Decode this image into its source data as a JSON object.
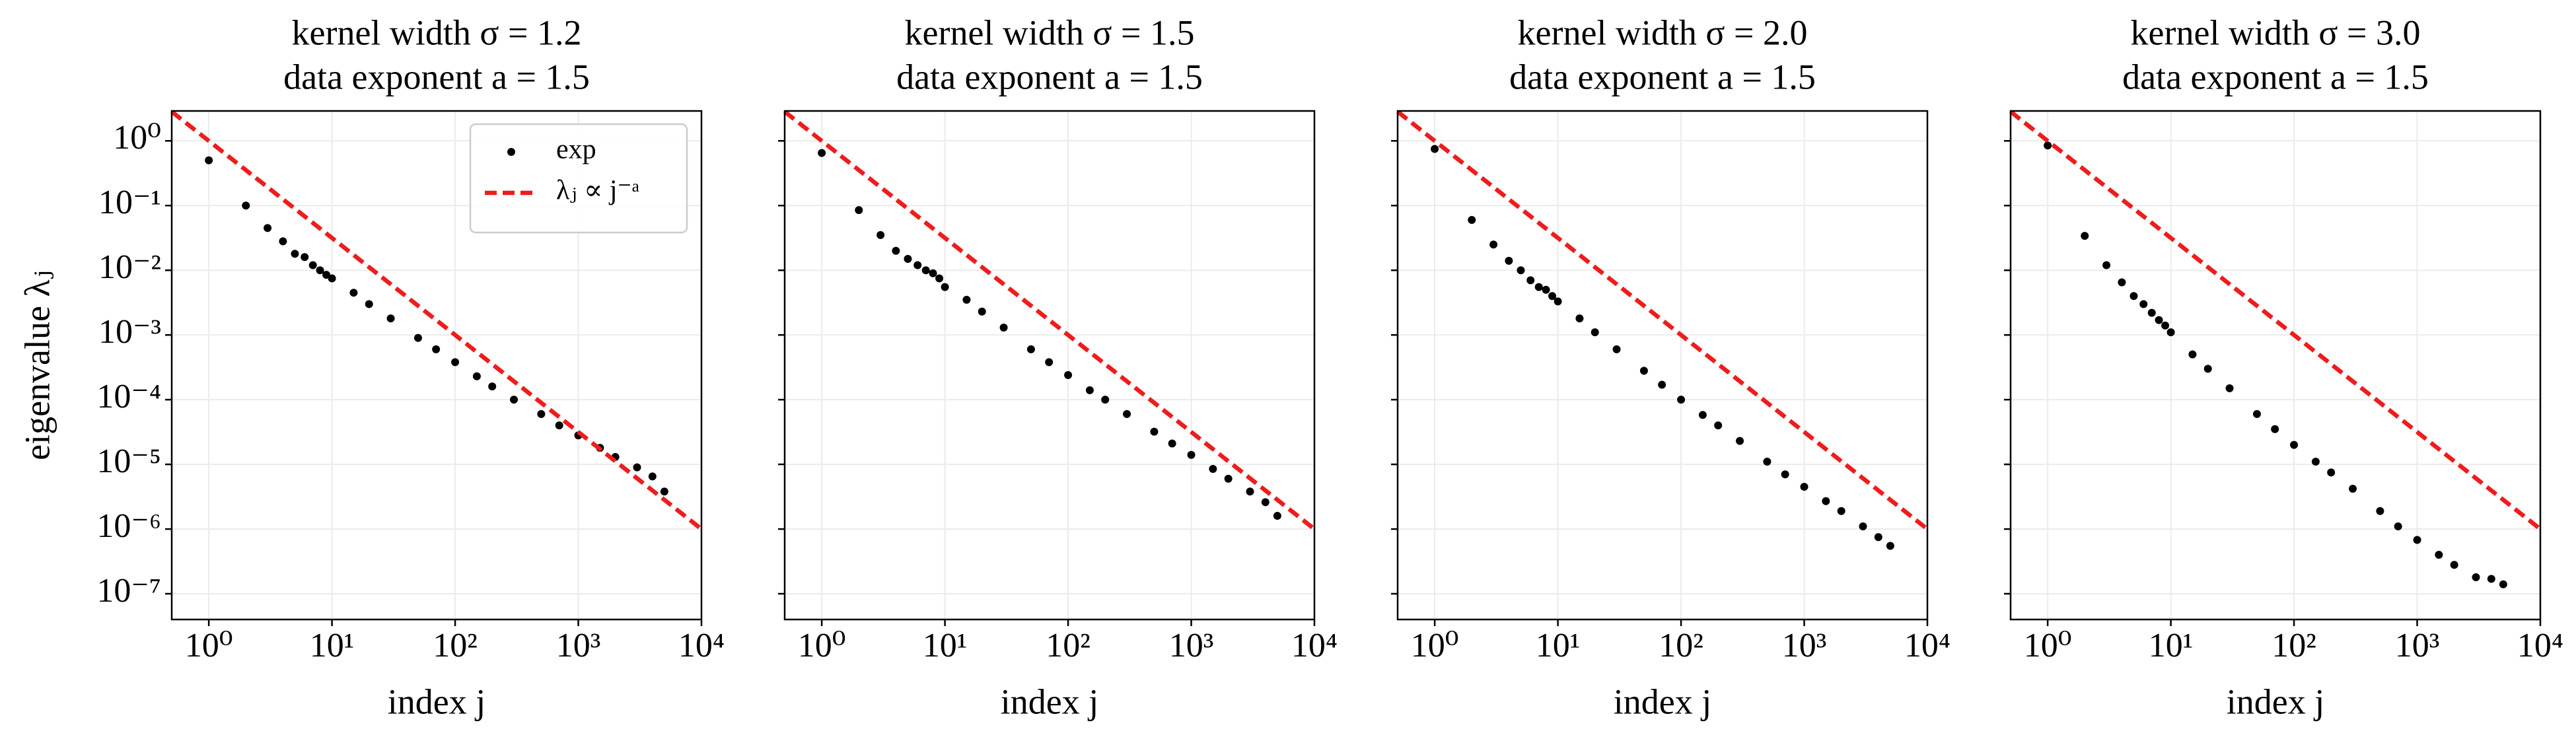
{
  "chart_data": [
    {
      "type": "scatter",
      "title": [
        "kernel width σ = 1.2",
        "data exponent a = 1.5"
      ],
      "xlabel": "index j",
      "ylabel": "eigenvalue λⱼ",
      "xscale": "log",
      "yscale": "log",
      "grid": true,
      "legend": "upper right",
      "xlim": [
        0.5,
        10000
      ],
      "ylim": [
        4e-08,
        2.9
      ],
      "xticks": [
        {
          "value": 1,
          "label": "10⁰"
        },
        {
          "value": 10,
          "label": "10¹"
        },
        {
          "value": 100,
          "label": "10²"
        },
        {
          "value": 1000,
          "label": "10³"
        },
        {
          "value": 10000,
          "label": "10⁴"
        }
      ],
      "yticks": [
        {
          "value": 1e-07,
          "label": "10⁻⁷"
        },
        {
          "value": 1e-06,
          "label": "10⁻⁶"
        },
        {
          "value": 1e-05,
          "label": "10⁻⁵"
        },
        {
          "value": 0.0001,
          "label": "10⁻⁴"
        },
        {
          "value": 0.001,
          "label": "10⁻³"
        },
        {
          "value": 0.01,
          "label": "10⁻²"
        },
        {
          "value": 0.1,
          "label": "10⁻¹"
        },
        {
          "value": 1,
          "label": "10⁰"
        }
      ],
      "series": [
        {
          "name": "exp",
          "color": "#000000",
          "marker": "o",
          "x": [
            1,
            2,
            3,
            4,
            5,
            6,
            7,
            8,
            9,
            10,
            15,
            20,
            30,
            50,
            70,
            100,
            150,
            200,
            300,
            500,
            700,
            1000,
            1500,
            2000,
            3000,
            4000,
            5000
          ],
          "values": [
            0.5,
            0.1,
            0.045,
            0.028,
            0.018,
            0.016,
            0.012,
            0.01,
            0.0085,
            0.0075,
            0.0045,
            0.003,
            0.0018,
            0.0009,
            0.0006,
            0.00038,
            0.00023,
            0.00016,
            0.0001,
            6e-05,
            4e-05,
            2.8e-05,
            1.8e-05,
            1.3e-05,
            9e-06,
            6.5e-06,
            3.8e-06
          ]
        },
        {
          "name": "λⱼ ∝ j⁻ᵃ",
          "color": "#ee1c1c",
          "linestyle": "--",
          "x": [
            0.5,
            10000
          ],
          "values": [
            2.828,
            1e-06
          ]
        }
      ]
    },
    {
      "type": "scatter",
      "title": [
        "kernel width σ = 1.5",
        "data exponent a = 1.5"
      ],
      "xlabel": "index j",
      "xscale": "log",
      "yscale": "log",
      "grid": true,
      "xlim": [
        0.5,
        10000
      ],
      "ylim": [
        4e-08,
        2.9
      ],
      "xticks": [
        {
          "value": 1,
          "label": "10⁰"
        },
        {
          "value": 10,
          "label": "10¹"
        },
        {
          "value": 100,
          "label": "10²"
        },
        {
          "value": 1000,
          "label": "10³"
        },
        {
          "value": 10000,
          "label": "10⁴"
        }
      ],
      "yticks": [
        1e-07,
        1e-06,
        1e-05,
        0.0001,
        0.001,
        0.01,
        0.1,
        1
      ],
      "series": [
        {
          "color": "#000000",
          "marker": "o",
          "x": [
            1,
            2,
            3,
            4,
            5,
            6,
            7,
            8,
            9,
            10,
            15,
            20,
            30,
            50,
            70,
            100,
            150,
            200,
            300,
            500,
            700,
            1000,
            1500,
            2000,
            3000,
            4000,
            5000
          ],
          "values": [
            0.65,
            0.085,
            0.035,
            0.02,
            0.015,
            0.012,
            0.01,
            0.009,
            0.0075,
            0.0055,
            0.0035,
            0.0023,
            0.0013,
            0.0006,
            0.00038,
            0.00024,
            0.00014,
            0.0001,
            6e-05,
            3.2e-05,
            2.1e-05,
            1.4e-05,
            8.5e-06,
            6e-06,
            3.8e-06,
            2.6e-06,
            1.6e-06
          ]
        },
        {
          "color": "#ee1c1c",
          "linestyle": "--",
          "x": [
            0.5,
            10000
          ],
          "values": [
            2.828,
            1e-06
          ]
        }
      ]
    },
    {
      "type": "scatter",
      "title": [
        "kernel width σ = 2.0",
        "data exponent a = 1.5"
      ],
      "xlabel": "index j",
      "xscale": "log",
      "yscale": "log",
      "grid": true,
      "xlim": [
        0.5,
        10000
      ],
      "ylim": [
        4e-08,
        2.9
      ],
      "xticks": [
        {
          "value": 1,
          "label": "10⁰"
        },
        {
          "value": 10,
          "label": "10¹"
        },
        {
          "value": 100,
          "label": "10²"
        },
        {
          "value": 1000,
          "label": "10³"
        },
        {
          "value": 10000,
          "label": "10⁴"
        }
      ],
      "yticks": [
        1e-07,
        1e-06,
        1e-05,
        0.0001,
        0.001,
        0.01,
        0.1,
        1
      ],
      "series": [
        {
          "color": "#000000",
          "marker": "o",
          "x": [
            1,
            2,
            3,
            4,
            5,
            6,
            7,
            8,
            9,
            10,
            15,
            20,
            30,
            50,
            70,
            100,
            150,
            200,
            300,
            500,
            700,
            1000,
            1500,
            2000,
            3000,
            4000,
            5000
          ],
          "values": [
            0.75,
            0.06,
            0.025,
            0.014,
            0.01,
            0.007,
            0.0055,
            0.005,
            0.004,
            0.0033,
            0.0018,
            0.0011,
            0.0006,
            0.00028,
            0.00017,
            0.0001,
            5.8e-05,
            4e-05,
            2.3e-05,
            1.1e-05,
            7e-06,
            4.5e-06,
            2.7e-06,
            1.9e-06,
            1.1e-06,
            7.5e-07,
            5.5e-07
          ]
        },
        {
          "color": "#ee1c1c",
          "linestyle": "--",
          "x": [
            0.5,
            10000
          ],
          "values": [
            2.828,
            1e-06
          ]
        }
      ]
    },
    {
      "type": "scatter",
      "title": [
        "kernel width σ = 3.0",
        "data exponent a = 1.5"
      ],
      "xlabel": "index j",
      "xscale": "log",
      "yscale": "log",
      "grid": true,
      "xlim": [
        0.5,
        10000
      ],
      "ylim": [
        4e-08,
        2.9
      ],
      "xticks": [
        {
          "value": 1,
          "label": "10⁰"
        },
        {
          "value": 10,
          "label": "10¹"
        },
        {
          "value": 100,
          "label": "10²"
        },
        {
          "value": 1000,
          "label": "10³"
        },
        {
          "value": 10000,
          "label": "10⁴"
        }
      ],
      "yticks": [
        1e-07,
        1e-06,
        1e-05,
        0.0001,
        0.001,
        0.01,
        0.1,
        1
      ],
      "series": [
        {
          "color": "#000000",
          "marker": "o",
          "x": [
            1,
            2,
            3,
            4,
            5,
            6,
            7,
            8,
            9,
            10,
            15,
            20,
            30,
            50,
            70,
            100,
            150,
            200,
            300,
            500,
            700,
            1000,
            1500,
            2000,
            3000,
            4000,
            5000
          ],
          "values": [
            0.85,
            0.034,
            0.012,
            0.0065,
            0.004,
            0.003,
            0.0022,
            0.0017,
            0.0014,
            0.0011,
            0.0005,
            0.0003,
            0.00015,
            6e-05,
            3.5e-05,
            2e-05,
            1.1e-05,
            7.5e-06,
            4.2e-06,
            1.9e-06,
            1.1e-06,
            6.8e-07,
            4e-07,
            2.8e-07,
            1.8e-07,
            1.7e-07,
            1.4e-07
          ]
        },
        {
          "color": "#ee1c1c",
          "linestyle": "--",
          "x": [
            0.5,
            10000
          ],
          "values": [
            2.828,
            1e-06
          ]
        }
      ]
    }
  ]
}
